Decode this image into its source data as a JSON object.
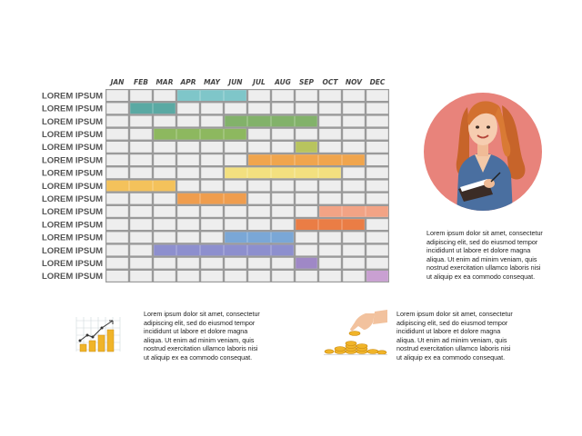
{
  "chart_data": {
    "type": "gantt",
    "months": [
      "JAN",
      "FEB",
      "MAR",
      "APR",
      "MAY",
      "JUN",
      "JUL",
      "AUG",
      "SEP",
      "OCT",
      "NOV",
      "DEC"
    ],
    "rows": [
      {
        "label": "LOREM IPSUM",
        "start": 4,
        "end": 6,
        "color": "#7fc6c9"
      },
      {
        "label": "LOREM IPSUM",
        "start": 2,
        "end": 3,
        "color": "#5aa9a3"
      },
      {
        "label": "LOREM IPSUM",
        "start": 6,
        "end": 9,
        "color": "#82b26a"
      },
      {
        "label": "LOREM IPSUM",
        "start": 3,
        "end": 6,
        "color": "#8db85f"
      },
      {
        "label": "LOREM IPSUM",
        "start": 9,
        "end": 9,
        "color": "#b8c45e"
      },
      {
        "label": "LOREM IPSUM",
        "start": 7,
        "end": 11,
        "color": "#f0a54d"
      },
      {
        "label": "LOREM IPSUM",
        "start": 6,
        "end": 10,
        "color": "#f3e07f"
      },
      {
        "label": "LOREM IPSUM",
        "start": 1,
        "end": 3,
        "color": "#f4c25b"
      },
      {
        "label": "LOREM IPSUM",
        "start": 4,
        "end": 6,
        "color": "#ef9d4e"
      },
      {
        "label": "LOREM IPSUM",
        "start": 10,
        "end": 12,
        "color": "#f2a385"
      },
      {
        "label": "LOREM IPSUM",
        "start": 9,
        "end": 11,
        "color": "#ea7d45"
      },
      {
        "label": "LOREM IPSUM",
        "start": 6,
        "end": 8,
        "color": "#7aa7d6"
      },
      {
        "label": "LOREM IPSUM",
        "start": 3,
        "end": 8,
        "color": "#8d8fce"
      },
      {
        "label": "LOREM IPSUM",
        "start": 9,
        "end": 9,
        "color": "#9f88c6"
      },
      {
        "label": "LOREM IPSUM",
        "start": 12,
        "end": 12,
        "color": "#c9a0d2"
      }
    ]
  },
  "colors": {
    "grid_line": "#9a9a9a",
    "cell": "#eeeeee",
    "circle_bg": "#e8837b",
    "coin": "#f0b429"
  },
  "text": {
    "right": [
      "Lorem ipsum dolor sit amet, consectetur",
      "adipiscing elit, sed do eiusmod tempor",
      "incididunt ut labore et dolore magna",
      "aliqua. Ut enim ad minim veniam, quis",
      "nostrud exercitation ullamco laboris nisi",
      "ut aliquip ex ea commodo consequat."
    ],
    "left": [
      "Lorem ipsum dolor sit amet, consectetur",
      "adipiscing elit, sed do eiusmod tempor",
      "incididunt ut labore et dolore magna",
      "aliqua. Ut enim ad minim veniam, quis",
      "nostrud exercitation ullamco laboris nisi",
      "ut aliquip ex ea commodo consequat."
    ],
    "mid": [
      "Lorem ipsum dolor sit amet, consectetur",
      "adipiscing elit, sed do eiusmod tempor",
      "incididunt ut labore et dolore magna",
      "aliqua. Ut enim ad minim veniam, quis",
      "nostrud exercitation ullamco laboris nisi",
      "ut aliquip ex ea commodo consequat."
    ]
  },
  "illustrations": {
    "top_right": "businesswoman-illustration",
    "bottom_left": "growth-chart-coins-icon",
    "bottom_mid": "hand-stacking-coins-icon"
  }
}
